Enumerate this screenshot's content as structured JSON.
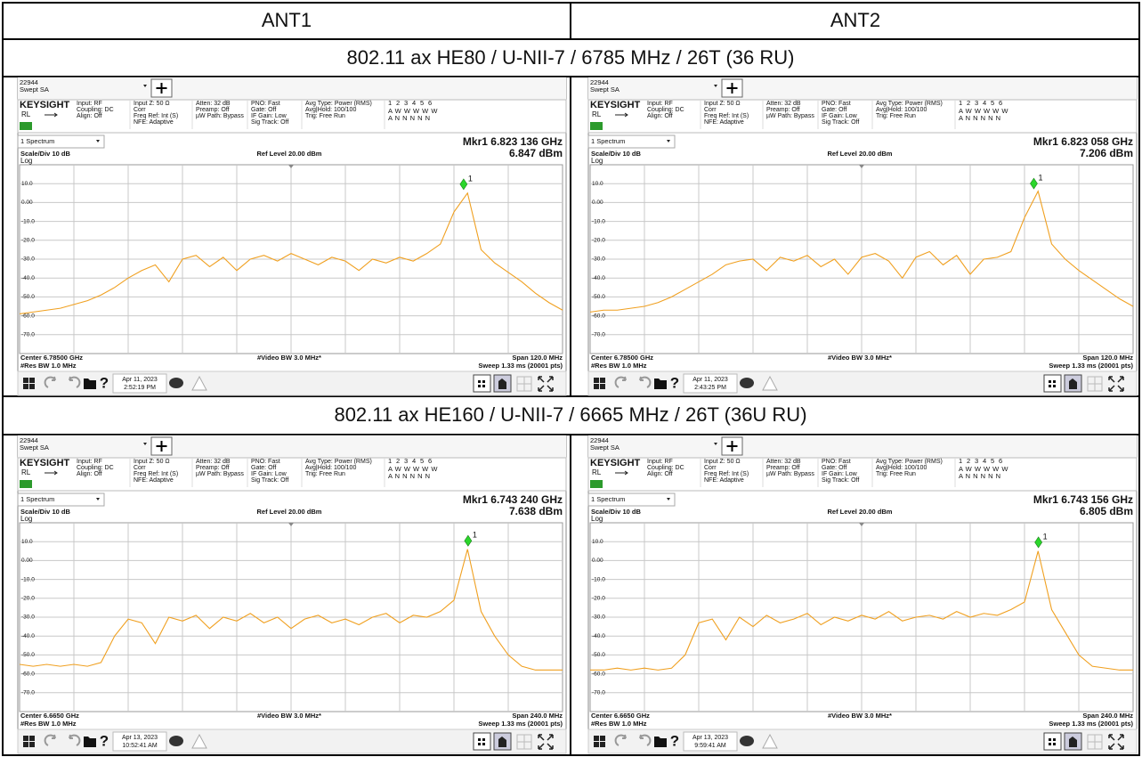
{
  "header": {
    "columns": [
      "ANT1",
      "ANT2"
    ]
  },
  "analyzer": {
    "instrument": "22944",
    "mode": "Swept SA",
    "brand": "KEYSIGHT",
    "rl": "RL",
    "settings": [
      [
        "Input: RF",
        "Coupling: DC",
        "Align: Off"
      ],
      [
        "Input Z: 50 Ω",
        "Corr",
        "Freq Ref: Int (S)",
        "NFE: Adaptive"
      ],
      [
        "Atten: 32 dB",
        "Preamp: Off",
        "µW Path: Bypass"
      ],
      [
        "PNO: Fast",
        "Gate: Off",
        "IF Gain: Low",
        "Sig Track: Off"
      ],
      [
        "Avg Type: Power (RMS)",
        "Avg|Hold: 100/100",
        "Trig: Free Run"
      ]
    ],
    "trace_numbers": [
      "1",
      "2",
      "3",
      "4",
      "5",
      "6"
    ],
    "trace_rows": [
      "A W W W W W",
      "A N N N N N"
    ],
    "window": "1 Spectrum",
    "scale": "Scale/Div 10 dB",
    "ref_level": "Ref Level 20.00 dBm",
    "log": "Log",
    "video_bw": "#Video BW 3.0 MHz*",
    "res_bw": "#Res BW 1.0 MHz",
    "sweep": "Sweep 1.33 ms (20001 pts)",
    "marker_number": "1",
    "help": "?",
    "ylim": [
      -80,
      20
    ],
    "yticks": [
      {
        "value": 10,
        "label": "10.0"
      },
      {
        "value": 0,
        "label": "0.00"
      },
      {
        "value": -10,
        "label": "-10.0"
      },
      {
        "value": -20,
        "label": "-20.0"
      },
      {
        "value": -30,
        "label": "-30.0"
      },
      {
        "value": -40,
        "label": "-40.0"
      },
      {
        "value": -50,
        "label": "-50.0"
      },
      {
        "value": -60,
        "label": "-60.0"
      },
      {
        "value": -70,
        "label": "-70.0"
      }
    ],
    "trace_color": "#f0a020",
    "marker_color": "#2bd62b"
  },
  "sections": [
    {
      "title": "802.11 ax HE80 / U-NII-7 / 6785 MHz / 26T (36 RU)",
      "panels": [
        {
          "marker": {
            "label": "Mkr1 6.823 136 GHz",
            "freq": 6.823136,
            "value": 6.847,
            "value_label": "6.847 dBm"
          },
          "center": "Center 6.78500 GHz",
          "span": "Span 120.0 MHz",
          "xlim": [
            6.725,
            6.845
          ],
          "date": "Apr 11, 2023",
          "time": "2:52:19 PM",
          "trace": {
            "x": [
              6.725,
              6.728,
              6.731,
              6.734,
              6.737,
              6.74,
              6.743,
              6.746,
              6.749,
              6.752,
              6.755,
              6.758,
              6.761,
              6.764,
              6.767,
              6.77,
              6.773,
              6.776,
              6.779,
              6.782,
              6.785,
              6.788,
              6.791,
              6.794,
              6.797,
              6.8,
              6.803,
              6.806,
              6.809,
              6.812,
              6.815,
              6.818,
              6.821,
              6.824,
              6.827,
              6.83,
              6.833,
              6.836,
              6.839,
              6.842,
              6.845
            ],
            "values": [
              -59,
              -58,
              -57,
              -56,
              -54,
              -52,
              -49,
              -45,
              -40,
              -36,
              -33,
              -42,
              -30,
              -28,
              -34,
              -29,
              -36,
              -30,
              -28,
              -31,
              -27,
              -30,
              -33,
              -29,
              -31,
              -36,
              -30,
              -32,
              -29,
              -31,
              -27,
              -22,
              -5,
              5,
              -25,
              -32,
              -37,
              -42,
              -48,
              -53,
              -57
            ]
          }
        },
        {
          "marker": {
            "label": "Mkr1 6.823 058 GHz",
            "freq": 6.823058,
            "value": 7.206,
            "value_label": "7.206 dBm"
          },
          "center": "Center 6.78500 GHz",
          "span": "Span 120.0 MHz",
          "xlim": [
            6.725,
            6.845
          ],
          "date": "Apr 11, 2023",
          "time": "2:43:25 PM",
          "trace": {
            "x": [
              6.725,
              6.728,
              6.731,
              6.734,
              6.737,
              6.74,
              6.743,
              6.746,
              6.749,
              6.752,
              6.755,
              6.758,
              6.761,
              6.764,
              6.767,
              6.77,
              6.773,
              6.776,
              6.779,
              6.782,
              6.785,
              6.788,
              6.791,
              6.794,
              6.797,
              6.8,
              6.803,
              6.806,
              6.809,
              6.812,
              6.815,
              6.818,
              6.821,
              6.824,
              6.827,
              6.83,
              6.833,
              6.836,
              6.839,
              6.842,
              6.845
            ],
            "values": [
              -58,
              -57,
              -57,
              -56,
              -55,
              -53,
              -50,
              -46,
              -42,
              -38,
              -33,
              -31,
              -30,
              -36,
              -29,
              -31,
              -28,
              -34,
              -30,
              -38,
              -29,
              -27,
              -31,
              -40,
              -29,
              -26,
              -33,
              -28,
              -38,
              -30,
              -29,
              -26,
              -8,
              6,
              -22,
              -30,
              -36,
              -41,
              -46,
              -51,
              -55
            ]
          }
        }
      ]
    },
    {
      "title": "802.11 ax HE160 / U-NII-7 / 6665 MHz / 26T (36U RU)",
      "panels": [
        {
          "marker": {
            "label": "Mkr1 6.743 240 GHz",
            "freq": 6.74324,
            "value": 7.638,
            "value_label": "7.638 dBm"
          },
          "center": "Center 6.6650 GHz",
          "span": "Span 240.0 MHz",
          "xlim": [
            6.545,
            6.785
          ],
          "date": "Apr 13, 2023",
          "time": "10:52:41 AM",
          "trace": {
            "x": [
              6.545,
              6.551,
              6.557,
              6.563,
              6.569,
              6.575,
              6.581,
              6.587,
              6.593,
              6.599,
              6.605,
              6.611,
              6.617,
              6.623,
              6.629,
              6.635,
              6.641,
              6.647,
              6.653,
              6.659,
              6.665,
              6.671,
              6.677,
              6.683,
              6.689,
              6.695,
              6.701,
              6.707,
              6.713,
              6.719,
              6.725,
              6.731,
              6.737,
              6.743,
              6.749,
              6.755,
              6.761,
              6.767,
              6.773,
              6.779,
              6.785
            ],
            "values": [
              -55,
              -56,
              -55,
              -56,
              -55,
              -56,
              -54,
              -40,
              -31,
              -33,
              -44,
              -30,
              -32,
              -29,
              -36,
              -30,
              -32,
              -28,
              -33,
              -30,
              -36,
              -31,
              -29,
              -33,
              -31,
              -34,
              -30,
              -28,
              -33,
              -29,
              -30,
              -27,
              -21,
              6,
              -27,
              -40,
              -50,
              -56,
              -58,
              -58,
              -58
            ]
          }
        },
        {
          "marker": {
            "label": "Mkr1 6.743 156 GHz",
            "freq": 6.743156,
            "value": 6.805,
            "value_label": "6.805 dBm"
          },
          "center": "Center 6.6650 GHz",
          "span": "Span 240.0 MHz",
          "xlim": [
            6.545,
            6.785
          ],
          "date": "Apr 13, 2023",
          "time": "9:59:41 AM",
          "trace": {
            "x": [
              6.545,
              6.551,
              6.557,
              6.563,
              6.569,
              6.575,
              6.581,
              6.587,
              6.593,
              6.599,
              6.605,
              6.611,
              6.617,
              6.623,
              6.629,
              6.635,
              6.641,
              6.647,
              6.653,
              6.659,
              6.665,
              6.671,
              6.677,
              6.683,
              6.689,
              6.695,
              6.701,
              6.707,
              6.713,
              6.719,
              6.725,
              6.731,
              6.737,
              6.743,
              6.749,
              6.755,
              6.761,
              6.767,
              6.773,
              6.779,
              6.785
            ],
            "values": [
              -58,
              -58,
              -57,
              -58,
              -57,
              -58,
              -57,
              -50,
              -33,
              -31,
              -42,
              -30,
              -35,
              -29,
              -33,
              -31,
              -28,
              -34,
              -30,
              -32,
              -29,
              -31,
              -27,
              -32,
              -30,
              -29,
              -31,
              -27,
              -30,
              -28,
              -29,
              -26,
              -22,
              5,
              -26,
              -38,
              -50,
              -56,
              -57,
              -58,
              -58
            ]
          }
        }
      ]
    }
  ]
}
